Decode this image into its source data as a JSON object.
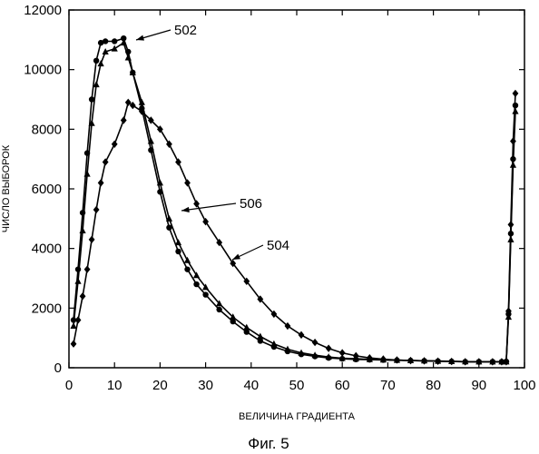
{
  "chart_data": {
    "type": "line",
    "title": "",
    "xlabel": "ВЕЛИЧИНА ГРАДИЕНТА",
    "ylabel": "ЧИСЛО ВЫБОРОК",
    "xlim": [
      0,
      100
    ],
    "ylim": [
      0,
      12000
    ],
    "xticks": [
      0,
      10,
      20,
      30,
      40,
      50,
      60,
      70,
      80,
      90,
      100
    ],
    "yticks": [
      0,
      2000,
      4000,
      6000,
      8000,
      10000,
      12000
    ],
    "grid": false,
    "legend": "none",
    "caption": "Фиг. 5",
    "series": [
      {
        "callout": "502",
        "marker": "circle",
        "x": [
          1,
          2,
          3,
          4,
          5,
          6,
          7,
          8,
          10,
          12,
          13,
          14,
          16,
          18,
          20,
          22,
          24,
          26,
          28,
          30,
          33,
          36,
          39,
          42,
          45,
          48,
          51,
          54,
          57,
          60,
          63,
          66,
          69,
          72,
          75,
          78,
          81,
          84,
          87,
          90,
          93,
          95,
          96,
          96.5,
          97,
          97.5,
          98
        ],
        "y": [
          1600,
          3300,
          5200,
          7200,
          9000,
          10300,
          10900,
          10950,
          10950,
          11050,
          10600,
          9900,
          8700,
          7300,
          5900,
          4700,
          3900,
          3300,
          2800,
          2450,
          1950,
          1550,
          1200,
          900,
          700,
          550,
          450,
          380,
          330,
          300,
          280,
          270,
          260,
          250,
          240,
          230,
          220,
          210,
          200,
          200,
          200,
          200,
          210,
          1800,
          4500,
          7000,
          8800
        ]
      },
      {
        "callout": "506",
        "marker": "triangle",
        "x": [
          1,
          2,
          3,
          4,
          5,
          6,
          7,
          8,
          10,
          12,
          13,
          14,
          16,
          18,
          20,
          22,
          24,
          26,
          28,
          30,
          33,
          36,
          39,
          42,
          45,
          48,
          51,
          54,
          57,
          60,
          63,
          66,
          69,
          72,
          75,
          78,
          81,
          84,
          87,
          90,
          93,
          95,
          96,
          96.5,
          97,
          97.5,
          98
        ],
        "y": [
          1400,
          2900,
          4600,
          6500,
          8200,
          9500,
          10200,
          10600,
          10700,
          10900,
          10400,
          9900,
          8900,
          7600,
          6200,
          5000,
          4200,
          3600,
          3100,
          2700,
          2150,
          1700,
          1350,
          1050,
          800,
          620,
          500,
          420,
          360,
          320,
          300,
          280,
          265,
          255,
          245,
          235,
          225,
          215,
          205,
          200,
          200,
          200,
          200,
          1700,
          4300,
          6800,
          8600
        ]
      },
      {
        "callout": "504",
        "marker": "diamond",
        "x": [
          1,
          2,
          3,
          4,
          5,
          6,
          7,
          8,
          10,
          12,
          13,
          14,
          16,
          18,
          20,
          22,
          24,
          26,
          28,
          30,
          33,
          36,
          39,
          42,
          45,
          48,
          51,
          54,
          57,
          60,
          63,
          66,
          69,
          72,
          75,
          78,
          81,
          84,
          87,
          90,
          93,
          95,
          96,
          96.5,
          97,
          97.5,
          98
        ],
        "y": [
          800,
          1600,
          2400,
          3300,
          4300,
          5300,
          6200,
          6900,
          7500,
          8300,
          8900,
          8800,
          8600,
          8300,
          8000,
          7500,
          6900,
          6200,
          5500,
          4900,
          4200,
          3500,
          2900,
          2300,
          1800,
          1400,
          1100,
          850,
          650,
          500,
          400,
          330,
          290,
          260,
          240,
          230,
          220,
          210,
          200,
          200,
          200,
          200,
          200,
          1900,
          4800,
          7600,
          9200
        ]
      }
    ]
  }
}
